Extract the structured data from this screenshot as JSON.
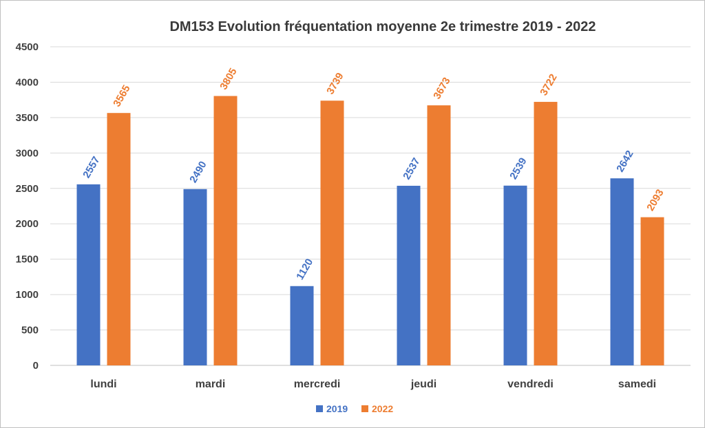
{
  "chart_data": {
    "type": "bar",
    "title": "DM153    Evolution fréquentation moyenne 2e trimestre 2019 - 2022",
    "xlabel": "",
    "ylabel": "",
    "categories": [
      "lundi",
      "mardi",
      "mercredi",
      "jeudi",
      "vendredi",
      "samedi"
    ],
    "series": [
      {
        "name": "2019",
        "color": "#4472c4",
        "values": [
          2557,
          2490,
          1120,
          2537,
          2539,
          2642
        ]
      },
      {
        "name": "2022",
        "color": "#ed7d31",
        "values": [
          3565,
          3805,
          3739,
          3673,
          3722,
          2093
        ]
      }
    ],
    "ylim": [
      0,
      4500
    ],
    "yticks": [
      0,
      500,
      1000,
      1500,
      2000,
      2500,
      3000,
      3500,
      4000,
      4500
    ],
    "grid": true,
    "legend_position": "bottom-center",
    "data_labels": true
  }
}
